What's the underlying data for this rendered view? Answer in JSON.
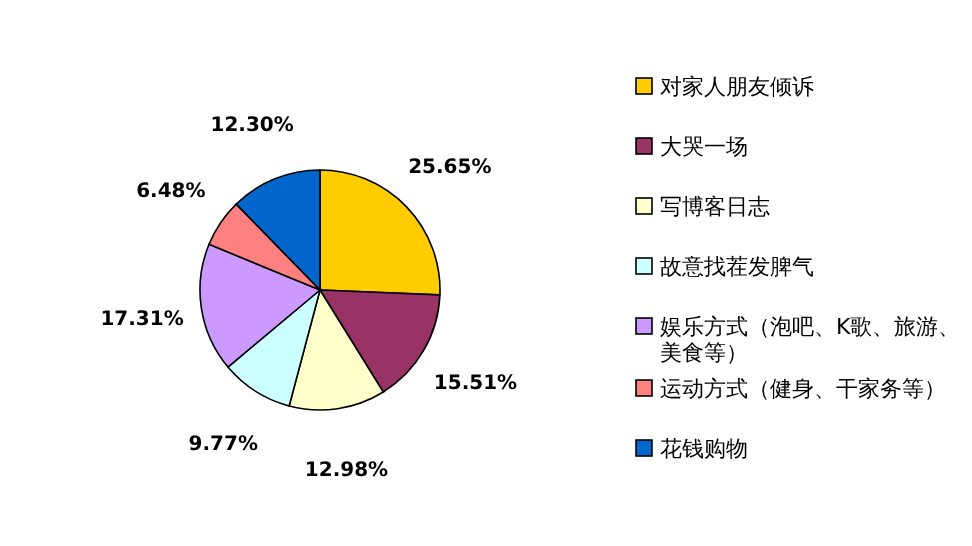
{
  "chart_data": {
    "type": "pie",
    "categories": [
      "对家人朋友倾诉",
      "大哭一场",
      "写博客日志",
      "故意找茬发脾气",
      "娱乐方式（泡吧、K歌、旅游、美食等）",
      "运动方式（健身、干家务等）",
      "花钱购物"
    ],
    "values": [
      25.65,
      15.51,
      12.98,
      9.77,
      17.31,
      6.48,
      12.3
    ],
    "colors": [
      "#ffcc00",
      "#993366",
      "#ffffcc",
      "#ccffff",
      "#cc99ff",
      "#ff8080",
      "#0066cc"
    ],
    "value_labels": [
      "25.65%",
      "15.51%",
      "12.98%",
      "9.77%",
      "17.31%",
      "6.48%",
      "12.30%"
    ],
    "legend": "right"
  }
}
